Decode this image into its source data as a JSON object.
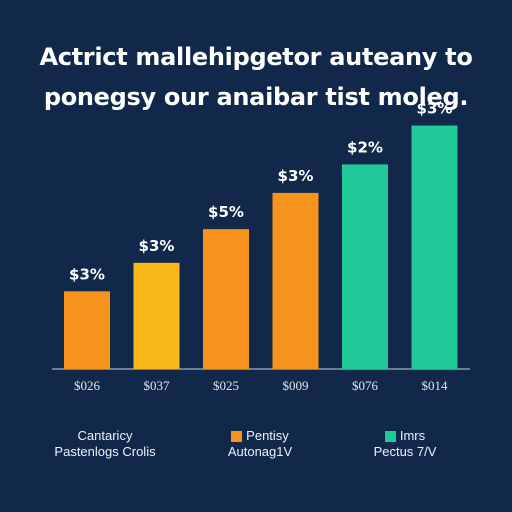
{
  "header": {
    "title_line1": "Actrict mallehipgetor auteany to",
    "title_line2": "ponegsy our anaibar tist moleg."
  },
  "colors": {
    "background": "#12284a",
    "bar_colors": [
      "#f7941d",
      "#f9b71c",
      "#f7941d",
      "#f7941d",
      "#20c99a",
      "#20c99a"
    ],
    "axis": "#c8d0dc"
  },
  "chart_data": {
    "type": "bar",
    "categories": [
      "$026",
      "$037",
      "$025",
      "$009",
      "$076",
      "$014"
    ],
    "values": [
      30,
      41,
      54,
      68,
      79,
      94
    ],
    "data_labels": [
      "$3%",
      "$3%",
      "$5%",
      "$3%",
      "$2%",
      "$3%"
    ],
    "ylim": [
      0,
      100
    ],
    "grid": false,
    "legend_position": "bottom"
  },
  "legend": [
    {
      "line1": "Cantaricy",
      "line2": "Pastenlogs Crolis",
      "swatch": ""
    },
    {
      "line1": "Pentisy",
      "line2": "Autonag1V",
      "swatch": "#f7941d"
    },
    {
      "line1": "Imrs",
      "line2": "Pectus 7/V",
      "swatch": "#20c99a"
    }
  ]
}
